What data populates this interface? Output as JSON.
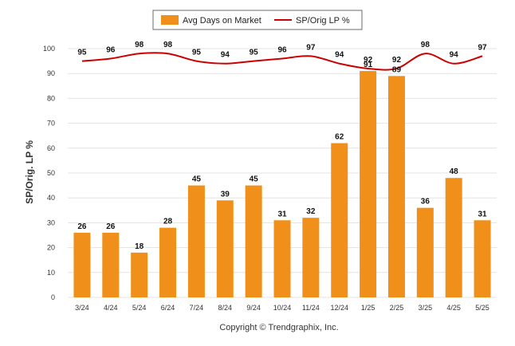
{
  "chart_data": {
    "type": "bar",
    "categories": [
      "3/24",
      "4/24",
      "5/24",
      "6/24",
      "7/24",
      "8/24",
      "9/24",
      "10/24",
      "11/24",
      "12/24",
      "1/25",
      "2/25",
      "3/25",
      "4/25",
      "5/25"
    ],
    "series": [
      {
        "name": "Avg Days on Market",
        "type": "bar",
        "color": "#f0901a",
        "values": [
          26,
          26,
          18,
          28,
          45,
          39,
          45,
          31,
          32,
          62,
          91,
          89,
          36,
          48,
          31
        ]
      },
      {
        "name": "SP/Orig LP %",
        "type": "line",
        "color": "#cc0000",
        "values": [
          95,
          96,
          98,
          98,
          95,
          94,
          95,
          96,
          97,
          94,
          92,
          92,
          98,
          94,
          97
        ]
      }
    ],
    "ylabel": "SP/Orig. LP %",
    "ylim": [
      0,
      100
    ],
    "yticks": [
      0,
      10,
      20,
      30,
      40,
      50,
      60,
      70,
      80,
      90,
      100
    ],
    "grid": true,
    "legend": "top-center"
  },
  "footer": {
    "copyright": "Copyright © Trendgraphix, Inc."
  }
}
